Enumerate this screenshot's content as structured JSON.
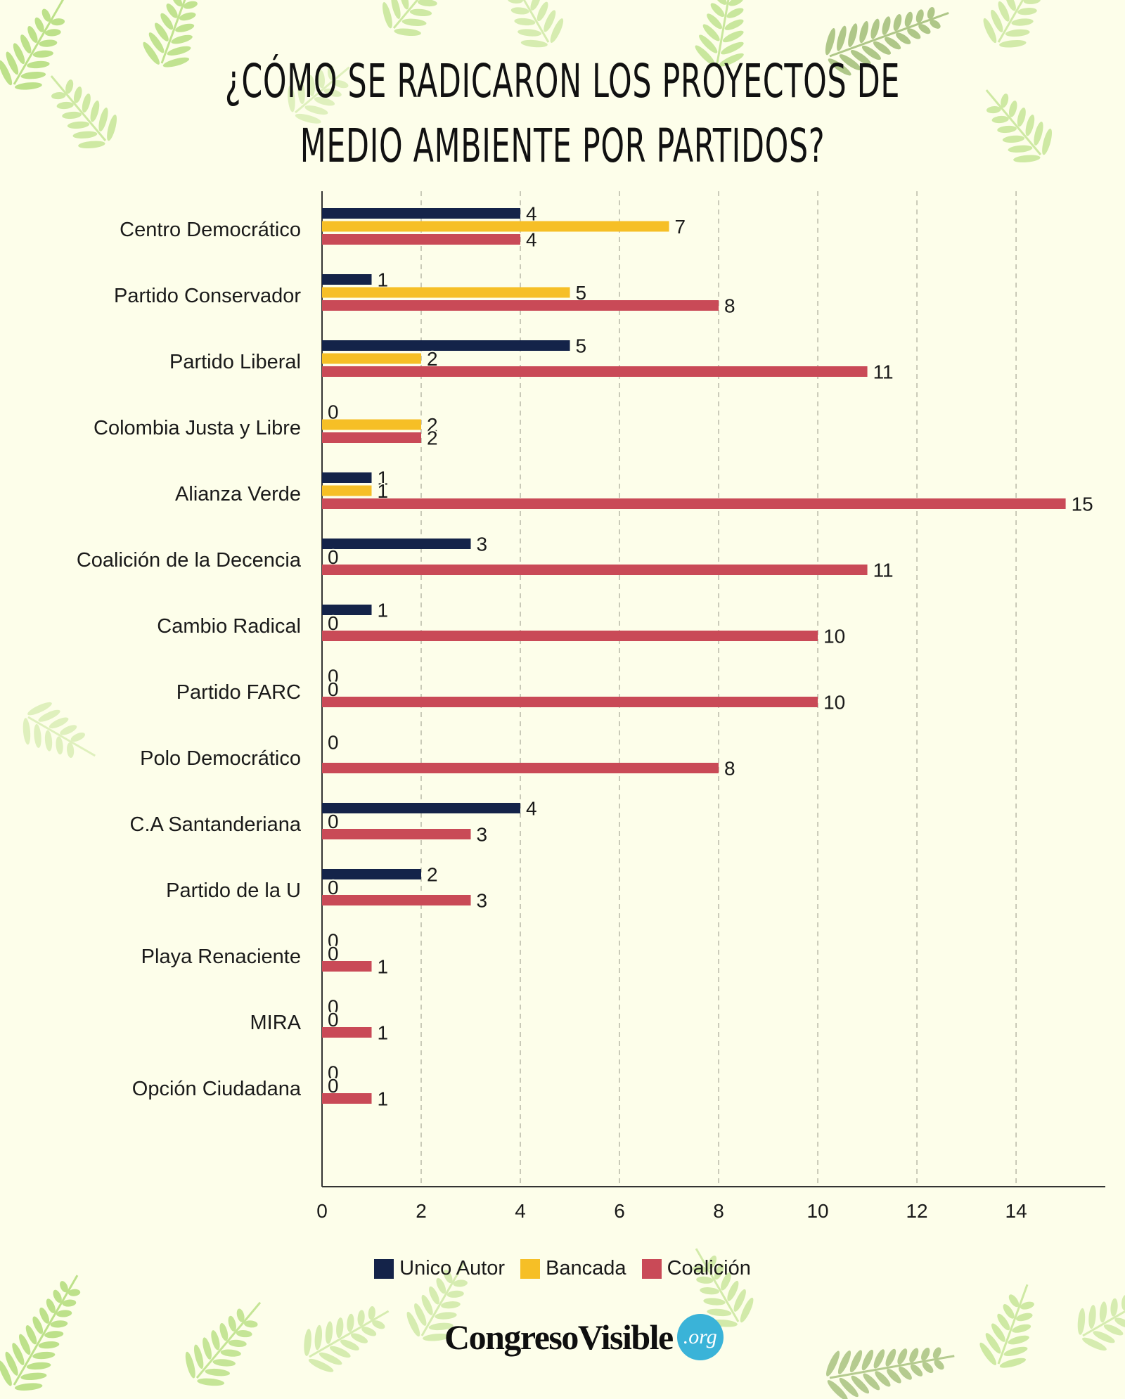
{
  "title": "¿Cómo se radicaron los proyectos de medio ambiente por partidos?",
  "logo": {
    "text": "CongresoVisible",
    "badge": ".org"
  },
  "chart_data": {
    "type": "bar",
    "orientation": "horizontal",
    "categories": [
      "Centro Democrático",
      "Partido Conservador",
      "Partido Liberal",
      "Colombia Justa y Libre",
      "Alianza Verde",
      "Coalición de la Decencia",
      "Cambio Radical",
      "Partido FARC",
      "Polo Democrático",
      "C.A Santanderiana",
      "Partido de la U",
      "Playa Renaciente",
      "MIRA",
      "Opción Ciudadana"
    ],
    "series": [
      {
        "name": "Unico Autor",
        "color": "#142349",
        "values": [
          4,
          1,
          5,
          0,
          1,
          3,
          1,
          0,
          0,
          4,
          2,
          0,
          0,
          0
        ]
      },
      {
        "name": "Bancada",
        "color": "#f6bf26",
        "values": [
          7,
          5,
          2,
          2,
          1,
          0,
          0,
          0,
          null,
          0,
          0,
          0,
          0,
          0
        ]
      },
      {
        "name": "Coalición",
        "color": "#c94a57",
        "values": [
          4,
          8,
          11,
          2,
          15,
          11,
          10,
          10,
          8,
          3,
          3,
          1,
          1,
          1
        ]
      }
    ],
    "xlim": [
      0,
      15.8
    ],
    "xticks": [
      0,
      2,
      4,
      6,
      8,
      10,
      12,
      14
    ],
    "xlabel": "",
    "ylabel": "",
    "grid": "vertical dashed",
    "legend": "bottom"
  }
}
